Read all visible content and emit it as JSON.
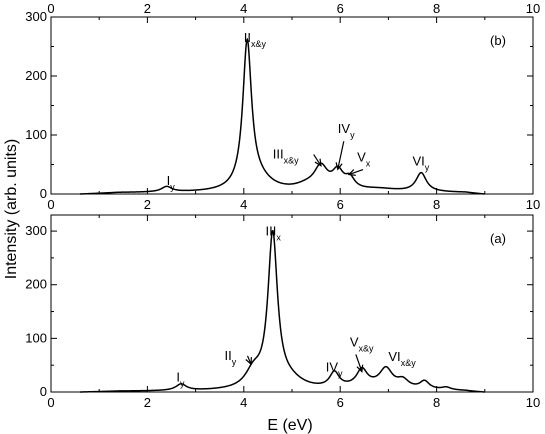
{
  "chart_data": [
    {
      "panel": "b",
      "type": "line",
      "xlabel": "",
      "ylabel": "",
      "xlim": [
        0,
        10
      ],
      "ylim": [
        0,
        300
      ],
      "xticks": [
        "0",
        "2",
        "4",
        "6",
        "8",
        "10"
      ],
      "yticks": [
        "0",
        "100",
        "200",
        "300"
      ],
      "top_xticks": [
        "0",
        "2",
        "4",
        "6",
        "8",
        "10"
      ],
      "panel_label": "(b)",
      "baseline": 2,
      "peaks": [
        {
          "x": 2.4,
          "height": 9,
          "width": 0.13
        },
        {
          "x": 4.07,
          "height": 246,
          "width": 0.11
        },
        {
          "x": 4.3,
          "height": 18,
          "width": 0.35
        },
        {
          "x": 5.6,
          "height": 38,
          "width": 0.17
        },
        {
          "x": 5.3,
          "height": 8,
          "width": 0.3
        },
        {
          "x": 5.95,
          "height": 30,
          "width": 0.14
        },
        {
          "x": 6.2,
          "height": 18,
          "width": 0.12
        },
        {
          "x": 7.68,
          "height": 32,
          "width": 0.13
        },
        {
          "x": 6.8,
          "height": 5,
          "width": 0.5
        }
      ],
      "annotations": [
        {
          "main": "I",
          "sub": "y",
          "x": 2.4,
          "y": 15,
          "arrow": false
        },
        {
          "main": "II",
          "sub": "x&y",
          "x": 4.0,
          "y": 258,
          "arrow": false
        },
        {
          "main": "III",
          "sub": "x&y",
          "x": 4.6,
          "y": 60,
          "arrow": true,
          "to_x": 5.6,
          "to_y": 48
        },
        {
          "main": "IV",
          "sub": "y",
          "x": 5.95,
          "y": 103,
          "arrow": true,
          "to_x": 5.95,
          "to_y": 42
        },
        {
          "main": "V",
          "sub": "x",
          "x": 6.35,
          "y": 55,
          "arrow": true,
          "to_x": 6.18,
          "to_y": 33
        },
        {
          "main": "VI",
          "sub": "y",
          "x": 7.5,
          "y": 48,
          "arrow": false
        }
      ]
    },
    {
      "panel": "a",
      "type": "line",
      "xlabel": "E (eV)",
      "ylabel": "",
      "xlim": [
        0,
        10
      ],
      "ylim": [
        0,
        330
      ],
      "xticks": [
        "0",
        "2",
        "4",
        "6",
        "8",
        "10"
      ],
      "yticks": [
        "0",
        "100",
        "200",
        "300"
      ],
      "panel_label": "(a)",
      "baseline": 1,
      "peaks": [
        {
          "x": 2.7,
          "height": 12,
          "width": 0.13
        },
        {
          "x": 4.6,
          "height": 285,
          "width": 0.12
        },
        {
          "x": 4.2,
          "height": 30,
          "width": 0.2
        },
        {
          "x": 4.95,
          "height": 15,
          "width": 0.35
        },
        {
          "x": 5.88,
          "height": 28,
          "width": 0.12
        },
        {
          "x": 6.45,
          "height": 30,
          "width": 0.13
        },
        {
          "x": 6.95,
          "height": 34,
          "width": 0.16
        },
        {
          "x": 7.3,
          "height": 15,
          "width": 0.15
        },
        {
          "x": 7.75,
          "height": 15,
          "width": 0.12
        },
        {
          "x": 8.2,
          "height": 5,
          "width": 0.12
        },
        {
          "x": 6.6,
          "height": 8,
          "width": 0.6
        }
      ],
      "annotations": [
        {
          "main": "I",
          "sub": "y",
          "x": 2.6,
          "y": 20,
          "arrow": false
        },
        {
          "main": "II",
          "sub": "y",
          "x": 3.6,
          "y": 60,
          "arrow": true,
          "to_x": 4.15,
          "to_y": 52
        },
        {
          "main": "III",
          "sub": "x",
          "x": 4.45,
          "y": 292,
          "arrow": false
        },
        {
          "main": "IV",
          "sub": "y",
          "x": 5.7,
          "y": 38,
          "arrow": false
        },
        {
          "main": "V",
          "sub": "x&y",
          "x": 6.2,
          "y": 85,
          "arrow": true,
          "to_x": 6.45,
          "to_y": 38
        },
        {
          "main": "VI",
          "sub": "x&y",
          "x": 7.0,
          "y": 58,
          "arrow": false
        }
      ]
    }
  ],
  "ylabel_shared": "Intensity (arb. units)"
}
